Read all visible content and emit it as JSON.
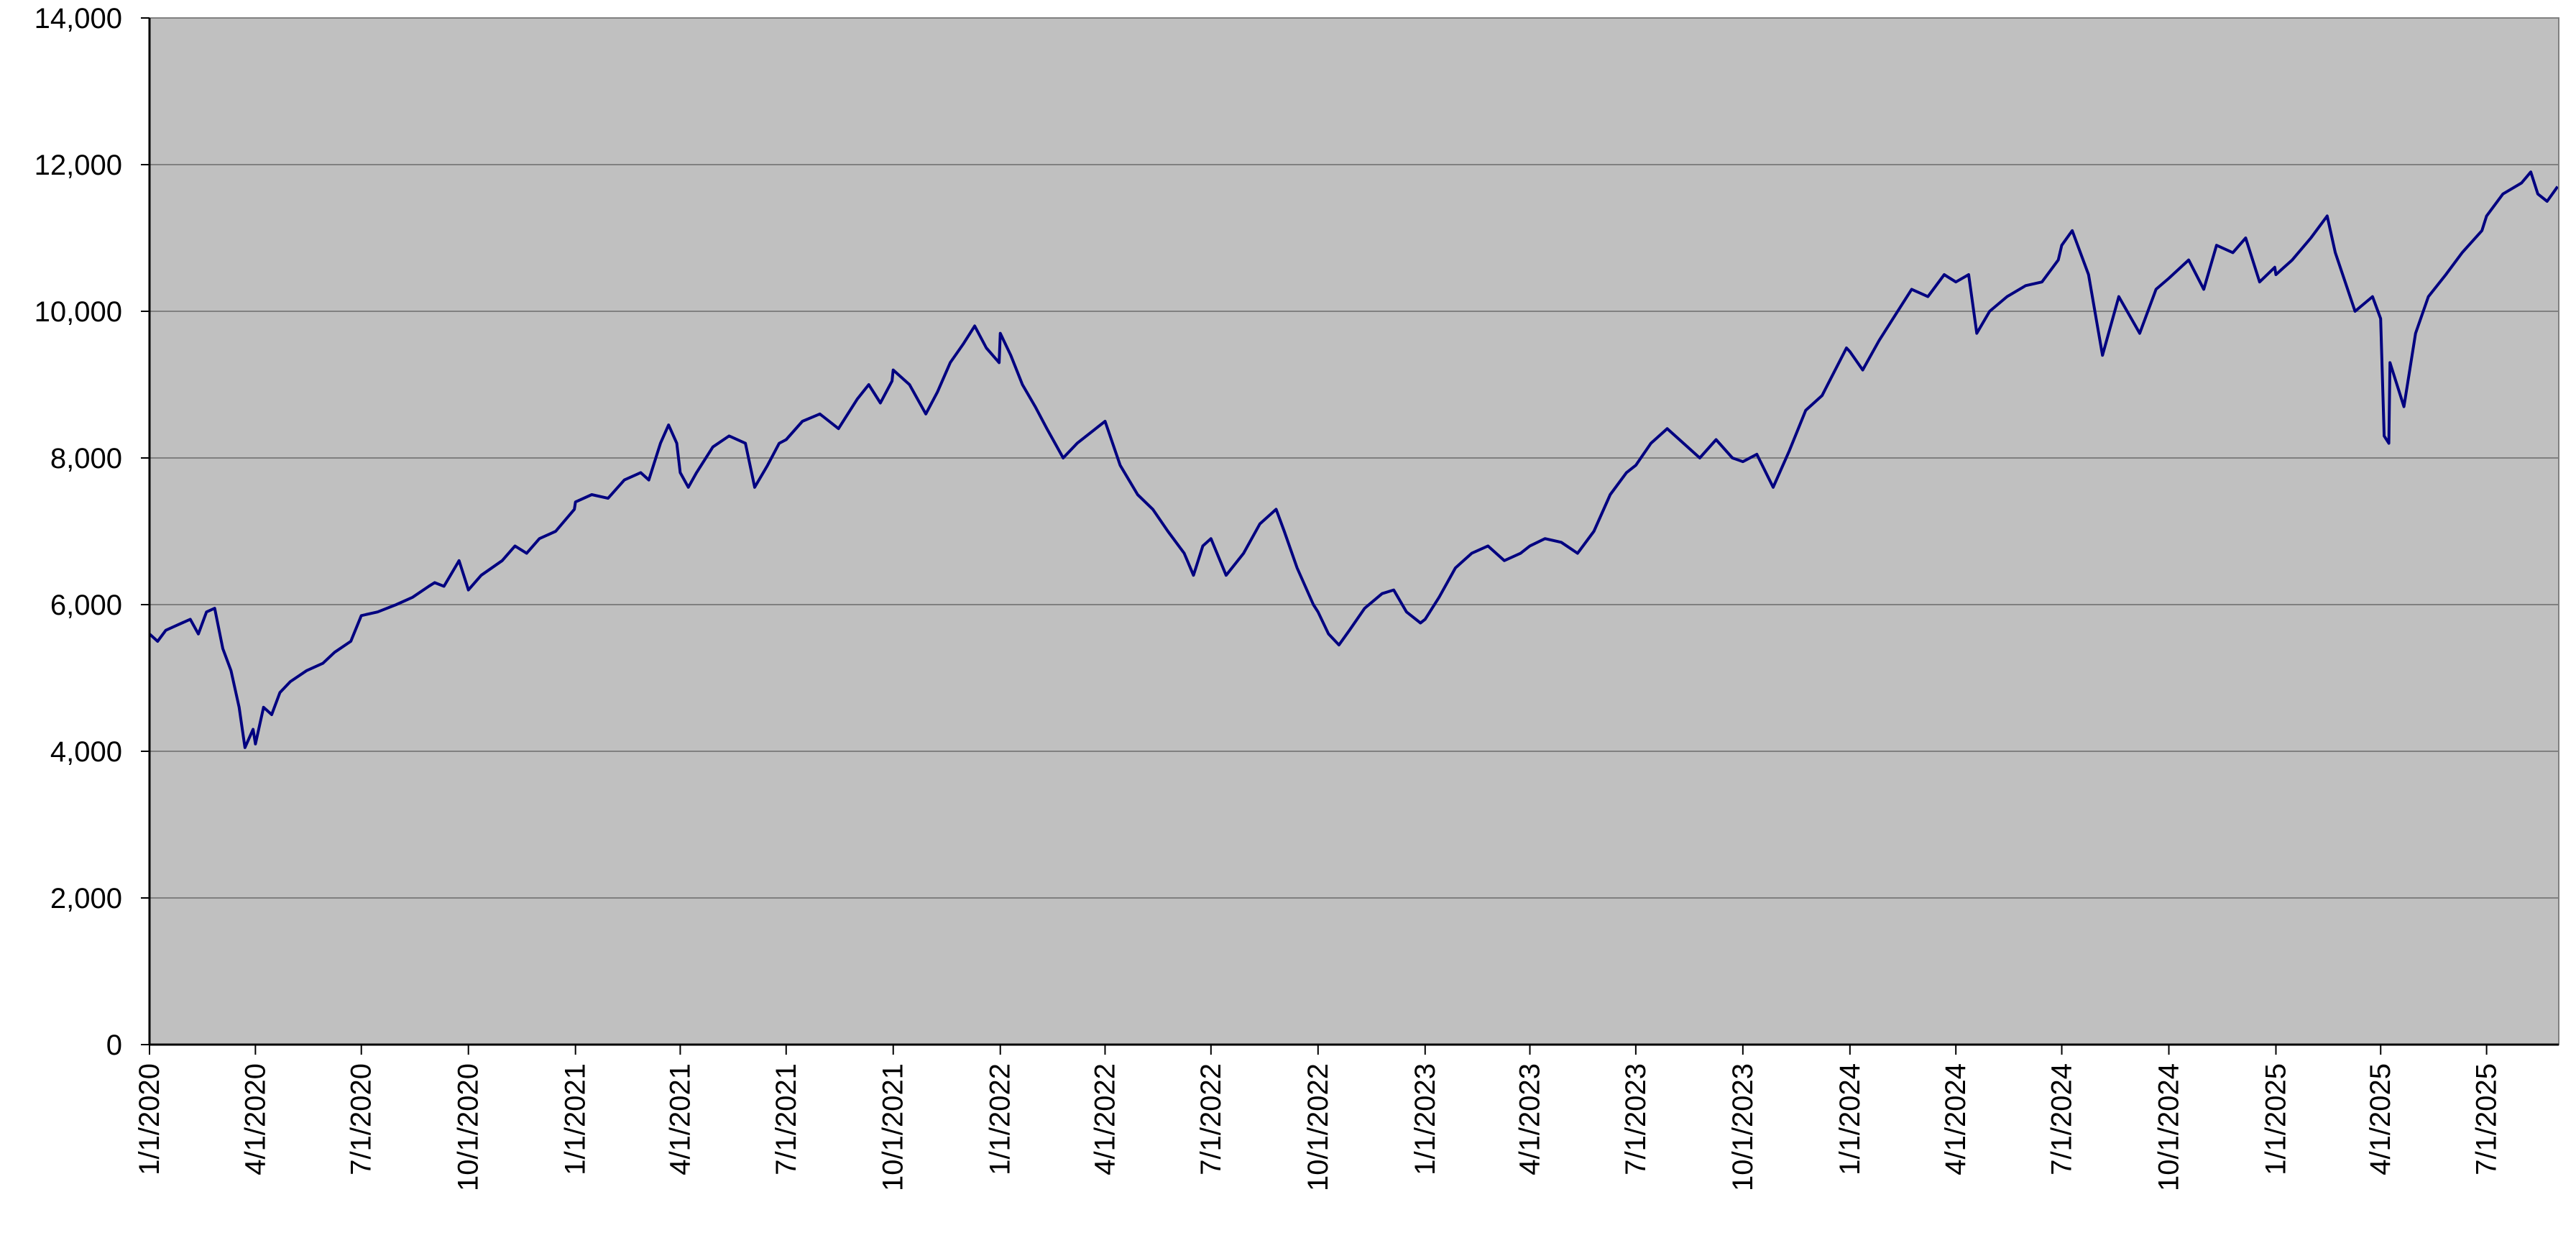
{
  "chart_data": {
    "type": "line",
    "title": "",
    "xlabel": "",
    "ylabel": "",
    "ylim": [
      0,
      14000
    ],
    "y_ticks": [
      "0",
      "2,000",
      "4,000",
      "6,000",
      "8,000",
      "10,000",
      "12,000",
      "14,000"
    ],
    "y_tick_values": [
      0,
      2000,
      4000,
      6000,
      8000,
      10000,
      12000,
      14000
    ],
    "x_ticks": [
      "1/1/2020",
      "4/1/2020",
      "7/1/2020",
      "10/1/2020",
      "1/1/2021",
      "4/1/2021",
      "7/1/2021",
      "10/1/2021",
      "1/1/2022",
      "4/1/2022",
      "7/1/2022",
      "10/1/2022",
      "1/1/2023",
      "4/1/2023",
      "7/1/2023",
      "10/1/2023",
      "1/1/2024",
      "4/1/2024",
      "7/1/2024",
      "10/1/2024",
      "1/1/2025",
      "4/1/2025",
      "7/1/2025"
    ],
    "xlim": [
      "1/1/2020",
      "9/1/2025"
    ],
    "grid": true,
    "legend": "none",
    "colors": {
      "plot_background": "#c0c0c0",
      "line": "#000080",
      "grid": "#808080"
    },
    "series": [
      {
        "values": [
          [
            "1/1/2020",
            5600
          ],
          [
            "1/8/2020",
            5500
          ],
          [
            "1/15/2020",
            5650
          ],
          [
            "1/22/2020",
            5700
          ],
          [
            "1/29/2020",
            5750
          ],
          [
            "2/5/2020",
            5800
          ],
          [
            "2/12/2020",
            5600
          ],
          [
            "2/19/2020",
            5900
          ],
          [
            "2/26/2020",
            5950
          ],
          [
            "3/4/2020",
            5400
          ],
          [
            "3/11/2020",
            5100
          ],
          [
            "3/18/2020",
            4600
          ],
          [
            "3/23/2020",
            4050
          ],
          [
            "3/30/2020",
            4300
          ],
          [
            "4/1/2020",
            4100
          ],
          [
            "4/8/2020",
            4600
          ],
          [
            "4/15/2020",
            4500
          ],
          [
            "4/22/2020",
            4800
          ],
          [
            "5/1/2020",
            4950
          ],
          [
            "5/15/2020",
            5100
          ],
          [
            "5/29/2020",
            5200
          ],
          [
            "6/8/2020",
            5350
          ],
          [
            "6/22/2020",
            5500
          ],
          [
            "7/1/2020",
            5850
          ],
          [
            "7/15/2020",
            5900
          ],
          [
            "7/31/2020",
            6000
          ],
          [
            "8/14/2020",
            6100
          ],
          [
            "8/28/2020",
            6250
          ],
          [
            "9/2/2020",
            6300
          ],
          [
            "9/10/2020",
            6250
          ],
          [
            "9/23/2020",
            6600
          ],
          [
            "9/30/2020",
            6250
          ],
          [
            "10/1/2020",
            6200
          ],
          [
            "10/12/2020",
            6400
          ],
          [
            "10/30/2020",
            6600
          ],
          [
            "11/10/2020",
            6800
          ],
          [
            "11/20/2020",
            6700
          ],
          [
            "12/1/2020",
            6900
          ],
          [
            "12/15/2020",
            7000
          ],
          [
            "12/31/2020",
            7300
          ],
          [
            "1/1/2021",
            7400
          ],
          [
            "1/15/2021",
            7500
          ],
          [
            "1/29/2021",
            7450
          ],
          [
            "2/12/2021",
            7700
          ],
          [
            "2/26/2021",
            7800
          ],
          [
            "3/5/2021",
            7700
          ],
          [
            "3/15/2021",
            8200
          ],
          [
            "3/22/2021",
            8450
          ],
          [
            "3/29/2021",
            8200
          ],
          [
            "4/1/2021",
            7800
          ],
          [
            "4/8/2021",
            7600
          ],
          [
            "4/15/2021",
            7800
          ],
          [
            "4/29/2021",
            8150
          ],
          [
            "5/13/2021",
            8300
          ],
          [
            "5/27/2021",
            8200
          ],
          [
            "6/4/2021",
            7600
          ],
          [
            "6/15/2021",
            7900
          ],
          [
            "6/25/2021",
            8200
          ],
          [
            "7/1/2021",
            8250
          ],
          [
            "7/15/2021",
            8500
          ],
          [
            "7/30/2021",
            8600
          ],
          [
            "8/15/2021",
            8400
          ],
          [
            "8/31/2021",
            8800
          ],
          [
            "9/10/2021",
            9000
          ],
          [
            "9/20/2021",
            8750
          ],
          [
            "9/30/2021",
            9050
          ],
          [
            "10/1/2021",
            9200
          ],
          [
            "10/15/2021",
            9000
          ],
          [
            "10/29/2021",
            8600
          ],
          [
            "11/8/2021",
            8900
          ],
          [
            "11/19/2021",
            9300
          ],
          [
            "11/30/2021",
            9550
          ],
          [
            "12/10/2021",
            9800
          ],
          [
            "12/20/2021",
            9500
          ],
          [
            "12/31/2021",
            9300
          ],
          [
            "1/1/2022",
            9700
          ],
          [
            "1/10/2022",
            9400
          ],
          [
            "1/20/2022",
            9000
          ],
          [
            "1/31/2022",
            8700
          ],
          [
            "2/10/2022",
            8400
          ],
          [
            "2/24/2022",
            8000
          ],
          [
            "3/8/2022",
            8200
          ],
          [
            "3/24/2022",
            8400
          ],
          [
            "4/1/2022",
            8500
          ],
          [
            "4/14/2022",
            7900
          ],
          [
            "4/29/2022",
            7500
          ],
          [
            "5/12/2022",
            7300
          ],
          [
            "5/25/2022",
            7000
          ],
          [
            "6/8/2022",
            6700
          ],
          [
            "6/16/2022",
            6400
          ],
          [
            "6/24/2022",
            6800
          ],
          [
            "7/1/2022",
            6900
          ],
          [
            "7/14/2022",
            6400
          ],
          [
            "7/29/2022",
            6700
          ],
          [
            "8/12/2022",
            7100
          ],
          [
            "8/26/2022",
            7300
          ],
          [
            "9/2/2022",
            7000
          ],
          [
            "9/13/2022",
            6500
          ],
          [
            "9/27/2022",
            6000
          ],
          [
            "10/1/2022",
            5900
          ],
          [
            "10/10/2022",
            5600
          ],
          [
            "10/19/2022",
            5450
          ],
          [
            "10/28/2022",
            5650
          ],
          [
            "11/10/2022",
            5950
          ],
          [
            "11/25/2022",
            6150
          ],
          [
            "12/5/2022",
            6200
          ],
          [
            "12/16/2022",
            5900
          ],
          [
            "12/28/2022",
            5750
          ],
          [
            "1/1/2023",
            5800
          ],
          [
            "1/13/2023",
            6100
          ],
          [
            "1/27/2023",
            6500
          ],
          [
            "2/10/2023",
            6700
          ],
          [
            "2/24/2023",
            6800
          ],
          [
            "3/10/2023",
            6600
          ],
          [
            "3/24/2023",
            6700
          ],
          [
            "4/1/2023",
            6800
          ],
          [
            "4/14/2023",
            6900
          ],
          [
            "4/28/2023",
            6850
          ],
          [
            "5/12/2023",
            6700
          ],
          [
            "5/26/2023",
            7000
          ],
          [
            "6/9/2023",
            7500
          ],
          [
            "6/23/2023",
            7800
          ],
          [
            "7/1/2023",
            7900
          ],
          [
            "7/14/2023",
            8200
          ],
          [
            "7/28/2023",
            8400
          ],
          [
            "8/11/2023",
            8200
          ],
          [
            "8/25/2023",
            8000
          ],
          [
            "9/8/2023",
            8250
          ],
          [
            "9/22/2023",
            8000
          ],
          [
            "10/1/2023",
            7950
          ],
          [
            "10/13/2023",
            8050
          ],
          [
            "10/27/2023",
            7600
          ],
          [
            "11/10/2023",
            8100
          ],
          [
            "11/24/2023",
            8650
          ],
          [
            "12/8/2023",
            8850
          ],
          [
            "12/29/2023",
            9500
          ],
          [
            "1/1/2024",
            9450
          ],
          [
            "1/12/2024",
            9200
          ],
          [
            "1/26/2024",
            9600
          ],
          [
            "2/9/2024",
            9950
          ],
          [
            "2/23/2024",
            10300
          ],
          [
            "3/8/2024",
            10200
          ],
          [
            "3/22/2024",
            10500
          ],
          [
            "4/1/2024",
            10400
          ],
          [
            "4/12/2024",
            10500
          ],
          [
            "4/19/2024",
            9700
          ],
          [
            "4/30/2024",
            10000
          ],
          [
            "5/15/2024",
            10200
          ],
          [
            "5/31/2024",
            10350
          ],
          [
            "6/14/2024",
            10400
          ],
          [
            "6/28/2024",
            10700
          ],
          [
            "7/1/2024",
            10900
          ],
          [
            "7/10/2024",
            11100
          ],
          [
            "7/24/2024",
            10500
          ],
          [
            "8/5/2024",
            9400
          ],
          [
            "8/19/2024",
            10200
          ],
          [
            "9/6/2024",
            9700
          ],
          [
            "9/20/2024",
            10300
          ],
          [
            "10/1/2024",
            10450
          ],
          [
            "10/18/2024",
            10700
          ],
          [
            "10/31/2024",
            10300
          ],
          [
            "11/11/2024",
            10900
          ],
          [
            "11/25/2024",
            10800
          ],
          [
            "12/6/2024",
            11000
          ],
          [
            "12/18/2024",
            10400
          ],
          [
            "12/31/2024",
            10600
          ],
          [
            "1/1/2025",
            10500
          ],
          [
            "1/15/2025",
            10700
          ],
          [
            "1/31/2025",
            11000
          ],
          [
            "2/14/2025",
            11300
          ],
          [
            "2/21/2025",
            10800
          ],
          [
            "3/10/2025",
            10000
          ],
          [
            "3/25/2025",
            10200
          ],
          [
            "4/1/2025",
            9900
          ],
          [
            "4/4/2025",
            8300
          ],
          [
            "4/8/2025",
            8200
          ],
          [
            "4/9/2025",
            9300
          ],
          [
            "4/21/2025",
            8700
          ],
          [
            "5/1/2025",
            9700
          ],
          [
            "5/12/2025",
            10200
          ],
          [
            "5/27/2025",
            10500
          ],
          [
            "6/10/2025",
            10800
          ],
          [
            "6/27/2025",
            11100
          ],
          [
            "7/1/2025",
            11300
          ],
          [
            "7/15/2025",
            11600
          ],
          [
            "7/31/2025",
            11750
          ],
          [
            "8/8/2025",
            11900
          ],
          [
            "8/14/2025",
            11600
          ],
          [
            "8/22/2025",
            11500
          ],
          [
            "8/31/2025",
            11700
          ]
        ]
      }
    ]
  }
}
